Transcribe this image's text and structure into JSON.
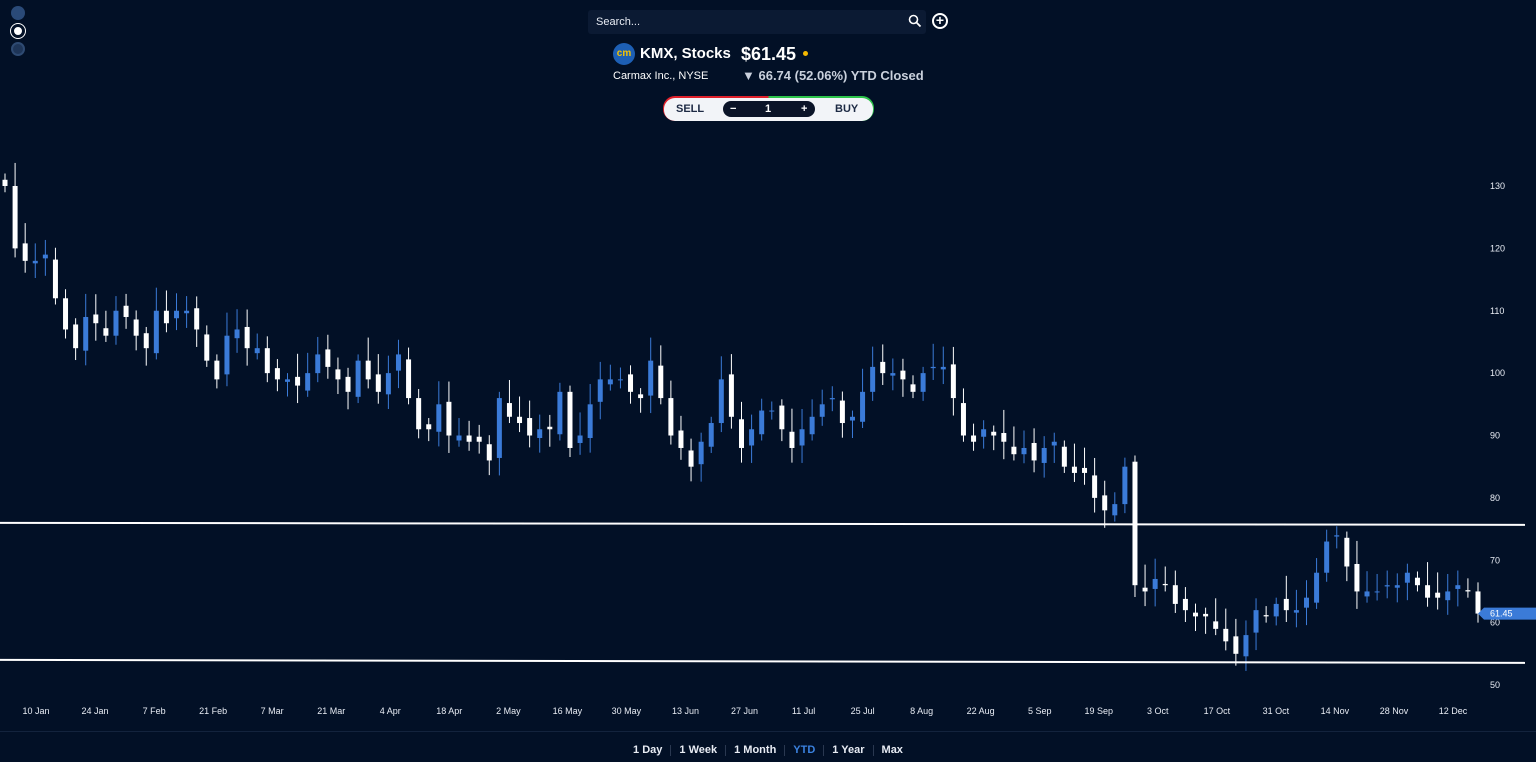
{
  "sidebar": {
    "icons": [
      "line-chart-icon",
      "candlestick-chart-icon",
      "settings-icon"
    ]
  },
  "search": {
    "placeholder": "Search..."
  },
  "quote": {
    "logo_text": "cm",
    "symbol": "KMX, Stocks",
    "price": "$61.45",
    "company": "Carmax Inc., NYSE",
    "change": "▼ 66.74 (52.06%) YTD Closed"
  },
  "trade": {
    "sell": "SELL",
    "buy": "BUY",
    "quantity": "1",
    "minus": "−",
    "plus": "+"
  },
  "ranges": [
    {
      "label": "1 Day"
    },
    {
      "label": "1 Week"
    },
    {
      "label": "1 Month"
    },
    {
      "label": "YTD",
      "active": true
    },
    {
      "label": "1 Year"
    },
    {
      "label": "Max"
    }
  ],
  "colors": {
    "up": "#3b7bd8",
    "down": "#ffffff",
    "background": "#021026",
    "accent": "#3b82e0"
  },
  "chart_data": {
    "type": "candlestick",
    "ylim": [
      50,
      130
    ],
    "y_ticks": [
      "130",
      "120",
      "110",
      "100",
      "90",
      "80",
      "70",
      "60",
      "50"
    ],
    "x_ticks": [
      "10 Jan",
      "24 Jan",
      "7 Feb",
      "21 Feb",
      "7 Mar",
      "21 Mar",
      "4 Apr",
      "18 Apr",
      "2 May",
      "16 May",
      "30 May",
      "13 Jun",
      "27 Jun",
      "11 Jul",
      "25 Jul",
      "8 Aug",
      "22 Aug",
      "5 Sep",
      "19 Sep",
      "3 Oct",
      "17 Oct",
      "31 Oct",
      "14 Nov",
      "28 Nov",
      "12 Dec"
    ],
    "last_price_label": "61.45",
    "horizontal_lines": [
      76.0,
      53.7
    ],
    "closes": [
      130,
      120,
      118,
      118,
      119,
      112,
      107,
      104,
      109,
      108,
      106,
      110,
      109,
      106,
      104,
      110,
      108,
      110,
      110,
      107,
      102,
      99,
      106,
      107,
      104,
      104,
      100,
      99,
      99,
      98,
      100,
      103,
      101,
      99,
      97,
      102,
      99,
      97,
      100,
      103,
      96,
      91,
      91,
      95,
      90,
      90,
      89,
      89,
      86,
      96,
      93,
      92,
      90,
      91,
      91,
      97,
      88,
      90,
      95,
      99,
      99,
      99,
      97,
      96,
      102,
      96,
      90,
      88,
      85,
      89,
      92,
      99,
      93,
      88,
      91,
      94,
      94,
      91,
      88,
      91,
      93,
      95,
      96,
      92,
      93,
      97,
      101,
      100,
      100,
      99,
      97,
      100,
      101,
      101,
      96,
      90,
      89,
      91,
      90,
      89,
      87,
      88,
      86,
      88,
      89,
      85,
      84,
      84,
      80,
      78,
      79,
      85,
      66,
      65,
      67,
      66,
      63,
      62,
      61,
      61,
      59,
      57,
      55,
      58,
      62,
      61,
      63,
      62,
      62,
      64,
      68,
      73,
      74,
      69,
      65,
      65,
      65,
      66,
      66,
      68,
      66,
      64,
      64,
      65,
      66,
      65,
      61.45
    ]
  }
}
